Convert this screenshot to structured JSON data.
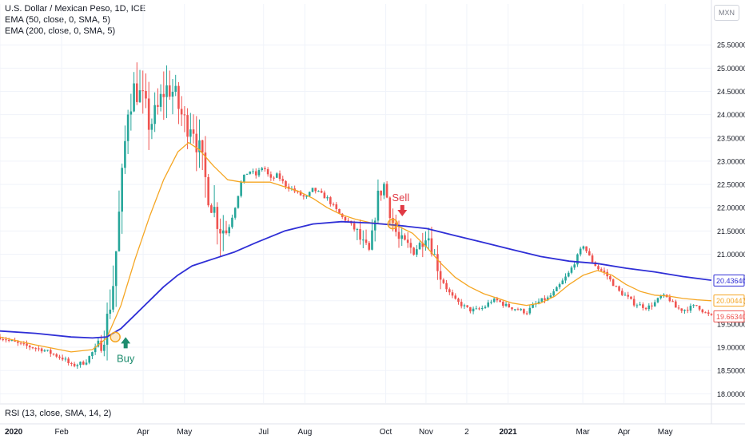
{
  "legend": {
    "title": "U.S. Dollar / Mexican Peso, 1D, ICE",
    "ema50": "EMA (50, close, 0, SMA, 5)",
    "ema200": "EMA (200, close, 0, SMA, 5)"
  },
  "currency_button": "MXN",
  "rsi_label": "RSI (13, close, SMA, 14, 2)",
  "colors": {
    "up": "#26a69a",
    "down": "#ef5350",
    "ema50": "#f5a623",
    "ema200": "#2f2fd6",
    "buy": "#1e8c6e",
    "sell": "#e03a45",
    "grid": "#f0f3fa",
    "axis_text": "#131722"
  },
  "chart_data": {
    "type": "candlestick",
    "y_ticks": [
      "18.00000",
      "18.50000",
      "19.00000",
      "19.50000",
      "20.00000",
      "20.50000",
      "21.00000",
      "21.50000",
      "22.00000",
      "22.50000",
      "23.00000",
      "23.50000",
      "24.00000",
      "24.50000",
      "25.00000",
      "25.50000"
    ],
    "ylim": [
      17.8,
      25.95
    ],
    "x_ticks": [
      {
        "label": "2020",
        "t": 0
      },
      {
        "label": "Feb",
        "t": 0.0866
      },
      {
        "label": "Apr",
        "t": 0.2012
      },
      {
        "label": "May",
        "t": 0.2593
      },
      {
        "label": "Jul",
        "t": 0.3705
      },
      {
        "label": "Aug",
        "t": 0.4286
      },
      {
        "label": "Oct",
        "t": 0.5422
      },
      {
        "label": "Nov",
        "t": 0.5988
      },
      {
        "label": "2",
        "t": 0.6561
      },
      {
        "label": "2021",
        "t": 0.7142
      },
      {
        "label": "Mar",
        "t": 0.8192
      },
      {
        "label": "Apr",
        "t": 0.8771
      },
      {
        "label": "May",
        "t": 0.9351
      }
    ],
    "price_path": [
      [
        0,
        19.22
      ],
      [
        0.03,
        19.05
      ],
      [
        0.06,
        18.95
      ],
      [
        0.09,
        18.75
      ],
      [
        0.1,
        18.6
      ],
      [
        0.12,
        18.68
      ],
      [
        0.135,
        19.0
      ],
      [
        0.15,
        19.5
      ],
      [
        0.16,
        20.5
      ],
      [
        0.17,
        22.3
      ],
      [
        0.18,
        24.2
      ],
      [
        0.19,
        24.6
      ],
      [
        0.2,
        24.3
      ],
      [
        0.21,
        23.8
      ],
      [
        0.22,
        24.0
      ],
      [
        0.23,
        24.5
      ],
      [
        0.24,
        24.6
      ],
      [
        0.25,
        24.2
      ],
      [
        0.26,
        23.8
      ],
      [
        0.27,
        23.9
      ],
      [
        0.28,
        23.2
      ],
      [
        0.29,
        22.5
      ],
      [
        0.3,
        22.0
      ],
      [
        0.31,
        21.6
      ],
      [
        0.32,
        21.5
      ],
      [
        0.33,
        22.0
      ],
      [
        0.34,
        22.6
      ],
      [
        0.35,
        22.8
      ],
      [
        0.36,
        22.7
      ],
      [
        0.37,
        22.9
      ],
      [
        0.38,
        22.6
      ],
      [
        0.39,
        22.7
      ],
      [
        0.4,
        22.5
      ],
      [
        0.41,
        22.4
      ],
      [
        0.42,
        22.3
      ],
      [
        0.43,
        22.2
      ],
      [
        0.44,
        22.4
      ],
      [
        0.45,
        22.3
      ],
      [
        0.46,
        22.2
      ],
      [
        0.47,
        22.0
      ],
      [
        0.48,
        21.8
      ],
      [
        0.49,
        21.7
      ],
      [
        0.5,
        21.5
      ],
      [
        0.51,
        21.2
      ],
      [
        0.52,
        21.0
      ],
      [
        0.53,
        22.2
      ],
      [
        0.54,
        22.5
      ],
      [
        0.55,
        21.8
      ],
      [
        0.56,
        21.3
      ],
      [
        0.57,
        21.2
      ],
      [
        0.58,
        21.1
      ],
      [
        0.59,
        21.2
      ],
      [
        0.6,
        21.5
      ],
      [
        0.61,
        21.0
      ],
      [
        0.62,
        20.5
      ],
      [
        0.63,
        20.2
      ],
      [
        0.64,
        20.0
      ],
      [
        0.65,
        19.9
      ],
      [
        0.66,
        19.8
      ],
      [
        0.67,
        19.8
      ],
      [
        0.68,
        19.85
      ],
      [
        0.69,
        20.0
      ],
      [
        0.7,
        20.0
      ],
      [
        0.71,
        19.9
      ],
      [
        0.72,
        19.85
      ],
      [
        0.73,
        19.8
      ],
      [
        0.74,
        19.75
      ],
      [
        0.75,
        19.9
      ],
      [
        0.76,
        20.0
      ],
      [
        0.77,
        20.05
      ],
      [
        0.78,
        20.2
      ],
      [
        0.79,
        20.4
      ],
      [
        0.8,
        20.6
      ],
      [
        0.81,
        20.9
      ],
      [
        0.82,
        21.2
      ],
      [
        0.83,
        20.9
      ],
      [
        0.84,
        20.7
      ],
      [
        0.85,
        20.6
      ],
      [
        0.86,
        20.4
      ],
      [
        0.87,
        20.2
      ],
      [
        0.88,
        20.1
      ],
      [
        0.89,
        19.95
      ],
      [
        0.9,
        19.9
      ],
      [
        0.91,
        19.85
      ],
      [
        0.92,
        19.95
      ],
      [
        0.93,
        20.1
      ],
      [
        0.94,
        20.05
      ],
      [
        0.95,
        19.85
      ],
      [
        0.96,
        19.8
      ],
      [
        0.97,
        19.85
      ],
      [
        0.98,
        19.9
      ],
      [
        0.99,
        19.75
      ],
      [
        1.0,
        19.66
      ]
    ],
    "ema50": [
      [
        0,
        19.22
      ],
      [
        0.05,
        19.05
      ],
      [
        0.1,
        18.9
      ],
      [
        0.13,
        18.95
      ],
      [
        0.15,
        19.2
      ],
      [
        0.17,
        19.9
      ],
      [
        0.19,
        20.9
      ],
      [
        0.21,
        21.8
      ],
      [
        0.23,
        22.6
      ],
      [
        0.25,
        23.2
      ],
      [
        0.265,
        23.4
      ],
      [
        0.28,
        23.25
      ],
      [
        0.3,
        22.9
      ],
      [
        0.32,
        22.6
      ],
      [
        0.34,
        22.55
      ],
      [
        0.36,
        22.55
      ],
      [
        0.38,
        22.55
      ],
      [
        0.4,
        22.45
      ],
      [
        0.42,
        22.35
      ],
      [
        0.44,
        22.2
      ],
      [
        0.46,
        22.0
      ],
      [
        0.48,
        21.85
      ],
      [
        0.5,
        21.75
      ],
      [
        0.52,
        21.68
      ],
      [
        0.54,
        21.65
      ],
      [
        0.56,
        21.6
      ],
      [
        0.58,
        21.45
      ],
      [
        0.6,
        21.15
      ],
      [
        0.62,
        20.8
      ],
      [
        0.64,
        20.5
      ],
      [
        0.66,
        20.3
      ],
      [
        0.68,
        20.15
      ],
      [
        0.7,
        20.05
      ],
      [
        0.72,
        19.95
      ],
      [
        0.74,
        19.9
      ],
      [
        0.76,
        19.95
      ],
      [
        0.78,
        20.1
      ],
      [
        0.8,
        20.35
      ],
      [
        0.82,
        20.55
      ],
      [
        0.84,
        20.65
      ],
      [
        0.86,
        20.55
      ],
      [
        0.88,
        20.35
      ],
      [
        0.9,
        20.2
      ],
      [
        0.92,
        20.12
      ],
      [
        0.94,
        20.1
      ],
      [
        0.96,
        20.05
      ],
      [
        0.98,
        20.02
      ],
      [
        1.0,
        20.0
      ]
    ],
    "ema200": [
      [
        0,
        19.35
      ],
      [
        0.05,
        19.3
      ],
      [
        0.1,
        19.22
      ],
      [
        0.13,
        19.2
      ],
      [
        0.15,
        19.22
      ],
      [
        0.17,
        19.4
      ],
      [
        0.19,
        19.7
      ],
      [
        0.21,
        20.0
      ],
      [
        0.23,
        20.3
      ],
      [
        0.25,
        20.55
      ],
      [
        0.27,
        20.75
      ],
      [
        0.3,
        20.9
      ],
      [
        0.33,
        21.05
      ],
      [
        0.36,
        21.25
      ],
      [
        0.4,
        21.5
      ],
      [
        0.44,
        21.65
      ],
      [
        0.48,
        21.7
      ],
      [
        0.52,
        21.67
      ],
      [
        0.56,
        21.62
      ],
      [
        0.6,
        21.55
      ],
      [
        0.64,
        21.4
      ],
      [
        0.68,
        21.25
      ],
      [
        0.72,
        21.1
      ],
      [
        0.76,
        20.95
      ],
      [
        0.8,
        20.85
      ],
      [
        0.84,
        20.8
      ],
      [
        0.88,
        20.7
      ],
      [
        0.92,
        20.62
      ],
      [
        0.96,
        20.52
      ],
      [
        1.0,
        20.44
      ]
    ],
    "price_labels": [
      {
        "text": "20.43640",
        "value": 20.4364,
        "color": "#2f2fd6"
      },
      {
        "text": "20.00447",
        "value": 20.00447,
        "color": "#f5a623"
      },
      {
        "text": "19.66340",
        "value": 19.6634,
        "color": "#ef5350"
      }
    ],
    "annotations": [
      {
        "text": "Buy",
        "t": 0.162,
        "value": 19.08,
        "kind": "buy",
        "cross_value": 19.22
      },
      {
        "text": "Sell",
        "t": 0.552,
        "value": 21.85,
        "kind": "sell",
        "cross_value": 21.65
      }
    ]
  }
}
